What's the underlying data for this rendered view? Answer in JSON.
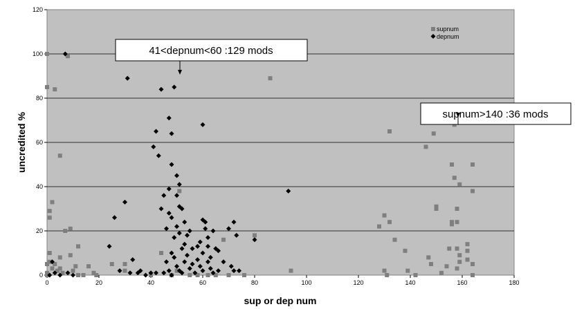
{
  "chart_data": {
    "type": "scatter",
    "xlabel": "sup or dep num",
    "ylabel": "uncredited %",
    "xlim": [
      0,
      180
    ],
    "ylim": [
      0,
      120
    ],
    "x_ticks": [
      0,
      20,
      40,
      60,
      80,
      100,
      120,
      140,
      160,
      180
    ],
    "y_ticks": [
      0,
      20,
      40,
      60,
      80,
      100,
      120
    ],
    "grid": "horizontal",
    "background": "#C0C0C0",
    "legend_position": "top-right",
    "series": [
      {
        "name": "supnum",
        "marker": "square",
        "color": "#7F7F7F",
        "points": [
          [
            0,
            100
          ],
          [
            0,
            85
          ],
          [
            0,
            5
          ],
          [
            0,
            1
          ],
          [
            0,
            0
          ],
          [
            1,
            29
          ],
          [
            1,
            26
          ],
          [
            1,
            10
          ],
          [
            1,
            6
          ],
          [
            2,
            33
          ],
          [
            2,
            3
          ],
          [
            3,
            84
          ],
          [
            3,
            5
          ],
          [
            4,
            2
          ],
          [
            5,
            54
          ],
          [
            5,
            8
          ],
          [
            5,
            3
          ],
          [
            6,
            1
          ],
          [
            7,
            20
          ],
          [
            8,
            99
          ],
          [
            9,
            21
          ],
          [
            9,
            9
          ],
          [
            10,
            2
          ],
          [
            11,
            4
          ],
          [
            12,
            13
          ],
          [
            12,
            0
          ],
          [
            14,
            0
          ],
          [
            16,
            4
          ],
          [
            18,
            1
          ],
          [
            19,
            0
          ],
          [
            25,
            5
          ],
          [
            30,
            5
          ],
          [
            30,
            2
          ],
          [
            40,
            0
          ],
          [
            44,
            10
          ],
          [
            48,
            0
          ],
          [
            50,
            2
          ],
          [
            51,
            38
          ],
          [
            55,
            0
          ],
          [
            58,
            0
          ],
          [
            62,
            0
          ],
          [
            65,
            0
          ],
          [
            68,
            16
          ],
          [
            70,
            0
          ],
          [
            76,
            0
          ],
          [
            80,
            18
          ],
          [
            86,
            89
          ],
          [
            94,
            2
          ],
          [
            128,
            22
          ],
          [
            130,
            27
          ],
          [
            130,
            2
          ],
          [
            131,
            0
          ],
          [
            132,
            65
          ],
          [
            132,
            24
          ],
          [
            134,
            16
          ],
          [
            138,
            11
          ],
          [
            139,
            2
          ],
          [
            142,
            0
          ],
          [
            146,
            58
          ],
          [
            147,
            8
          ],
          [
            148,
            5
          ],
          [
            149,
            64
          ],
          [
            150,
            31
          ],
          [
            150,
            30
          ],
          [
            152,
            1
          ],
          [
            154,
            4
          ],
          [
            155,
            12
          ],
          [
            155,
            71
          ],
          [
            156,
            50
          ],
          [
            156,
            24
          ],
          [
            156,
            23
          ],
          [
            157,
            68
          ],
          [
            157,
            44
          ],
          [
            158,
            30
          ],
          [
            158,
            24
          ],
          [
            158,
            12
          ],
          [
            158,
            3
          ],
          [
            159,
            41
          ],
          [
            159,
            9
          ],
          [
            159,
            6
          ],
          [
            162,
            14
          ],
          [
            162,
            11
          ],
          [
            162,
            7
          ],
          [
            164,
            50
          ],
          [
            164,
            38
          ],
          [
            164,
            5
          ],
          [
            164,
            0
          ]
        ]
      },
      {
        "name": "depnum",
        "marker": "diamond",
        "color": "#000000",
        "points": [
          [
            1,
            0
          ],
          [
            2,
            6
          ],
          [
            3,
            1
          ],
          [
            5,
            0
          ],
          [
            7,
            100
          ],
          [
            8,
            1
          ],
          [
            10,
            0
          ],
          [
            24,
            13
          ],
          [
            26,
            26
          ],
          [
            28,
            2
          ],
          [
            30,
            33
          ],
          [
            31,
            89
          ],
          [
            32,
            1
          ],
          [
            33,
            7
          ],
          [
            35,
            1
          ],
          [
            36,
            2
          ],
          [
            38,
            0
          ],
          [
            40,
            1
          ],
          [
            41,
            58
          ],
          [
            42,
            1
          ],
          [
            42,
            65
          ],
          [
            43,
            54
          ],
          [
            44,
            84
          ],
          [
            44,
            30
          ],
          [
            45,
            36
          ],
          [
            45,
            1
          ],
          [
            46,
            21
          ],
          [
            46,
            6
          ],
          [
            47,
            71
          ],
          [
            47,
            39
          ],
          [
            47,
            28
          ],
          [
            47,
            2
          ],
          [
            48,
            64
          ],
          [
            48,
            50
          ],
          [
            48,
            26
          ],
          [
            48,
            10
          ],
          [
            48,
            0
          ],
          [
            49,
            85
          ],
          [
            49,
            17
          ],
          [
            49,
            8
          ],
          [
            50,
            45
          ],
          [
            50,
            36
          ],
          [
            50,
            22
          ],
          [
            50,
            4
          ],
          [
            51,
            41
          ],
          [
            51,
            31
          ],
          [
            51,
            19
          ],
          [
            51,
            2
          ],
          [
            52,
            30
          ],
          [
            52,
            12
          ],
          [
            52,
            1
          ],
          [
            53,
            24
          ],
          [
            53,
            14
          ],
          [
            53,
            6
          ],
          [
            54,
            18
          ],
          [
            54,
            9
          ],
          [
            55,
            20
          ],
          [
            55,
            3
          ],
          [
            56,
            12
          ],
          [
            56,
            5
          ],
          [
            57,
            1
          ],
          [
            58,
            13
          ],
          [
            58,
            7
          ],
          [
            59,
            15
          ],
          [
            59,
            4
          ],
          [
            60,
            68
          ],
          [
            60,
            25
          ],
          [
            60,
            10
          ],
          [
            60,
            2
          ],
          [
            61,
            24
          ],
          [
            61,
            21
          ],
          [
            62,
            17
          ],
          [
            62,
            13
          ],
          [
            62,
            6
          ],
          [
            63,
            8
          ],
          [
            63,
            3
          ],
          [
            64,
            20
          ],
          [
            64,
            1
          ],
          [
            65,
            12
          ],
          [
            66,
            11
          ],
          [
            66,
            2
          ],
          [
            68,
            6
          ],
          [
            70,
            21
          ],
          [
            71,
            4
          ],
          [
            72,
            24
          ],
          [
            72,
            2
          ],
          [
            73,
            18
          ],
          [
            74,
            2
          ],
          [
            80,
            16
          ],
          [
            93,
            38
          ]
        ]
      }
    ],
    "annotations": [
      {
        "text": "41<depnum<60 :129 mods",
        "arrow_to": [
          51,
          91
        ]
      },
      {
        "text": "supnum>140 :36 mods",
        "arrow_to": [
          158,
          71
        ]
      }
    ]
  }
}
